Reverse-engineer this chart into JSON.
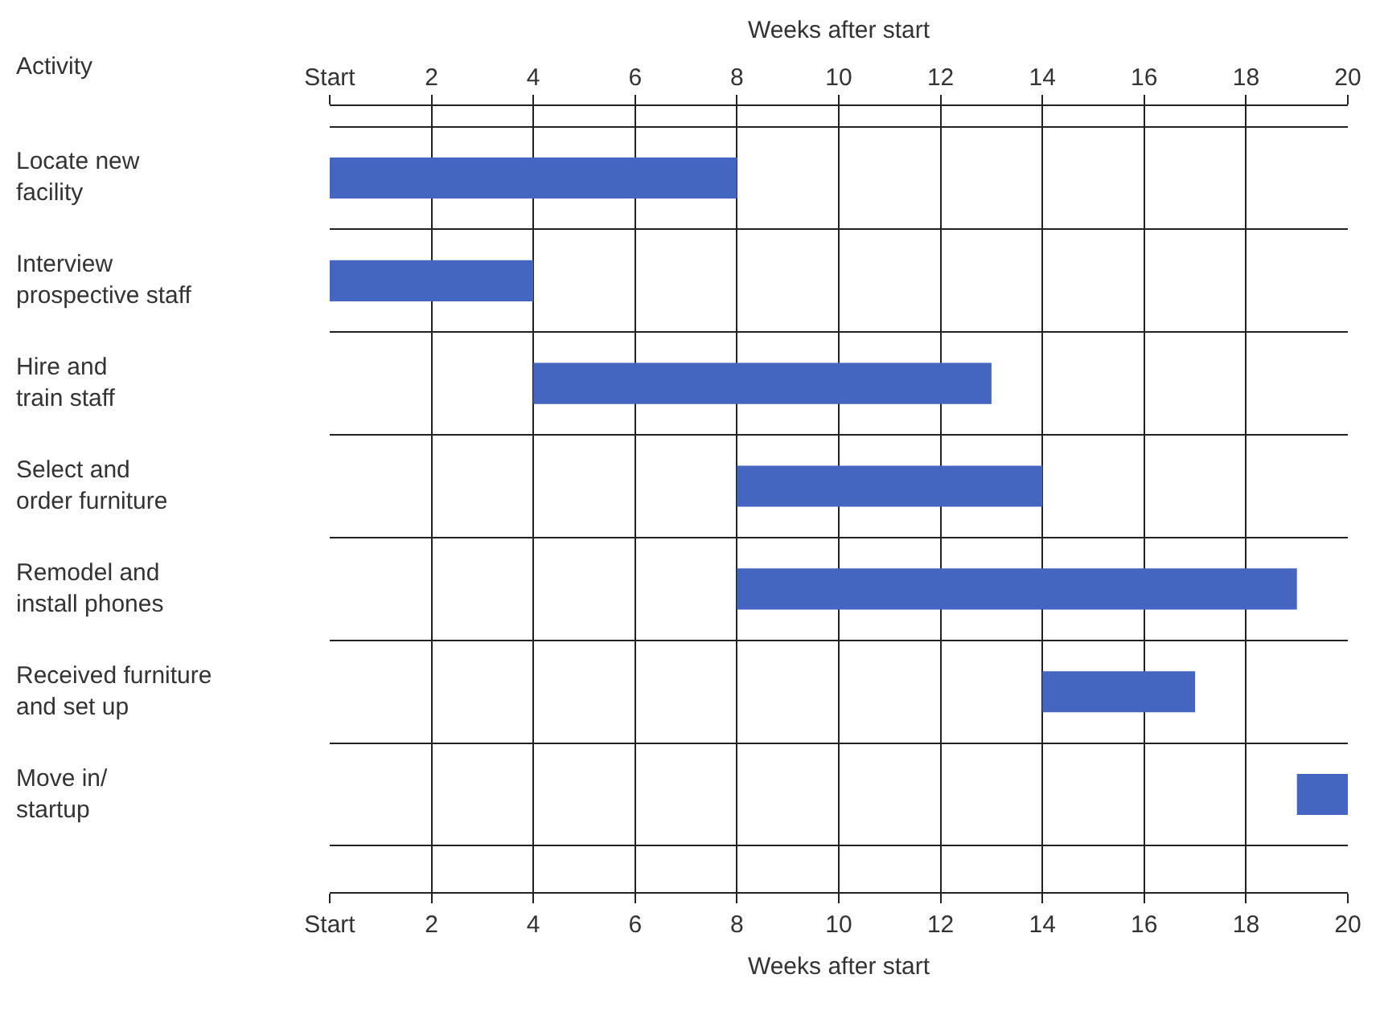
{
  "chart_data": {
    "type": "bar",
    "orientation": "horizontal",
    "xlabel": "Weeks after start",
    "x2label": "Weeks after start",
    "ylabel": "Activity",
    "categories": [
      "Locate new\nfacility",
      "Interview\nprospective staff",
      "Hire and\ntrain staff",
      "Select and\norder furniture",
      "Remodel and\ninstall phones",
      "Received furniture\nand set up",
      "Move in/\nstartup"
    ],
    "base": [
      0,
      0,
      4,
      8,
      8,
      14,
      19
    ],
    "values": [
      8,
      4,
      9,
      6,
      11,
      3,
      1
    ],
    "color": "#4466c0",
    "xlim": [
      0,
      20
    ],
    "xticks": [
      {
        "value": 0,
        "label": "Start"
      },
      2,
      4,
      6,
      8,
      10,
      12,
      14,
      16,
      18,
      20
    ],
    "x2lim": [
      0,
      20
    ],
    "x2ticks": [
      {
        "value": 0,
        "label": "Start"
      },
      2,
      4,
      6,
      8,
      10,
      12,
      14,
      16,
      18,
      20
    ],
    "grid": true,
    "legend": false
  }
}
